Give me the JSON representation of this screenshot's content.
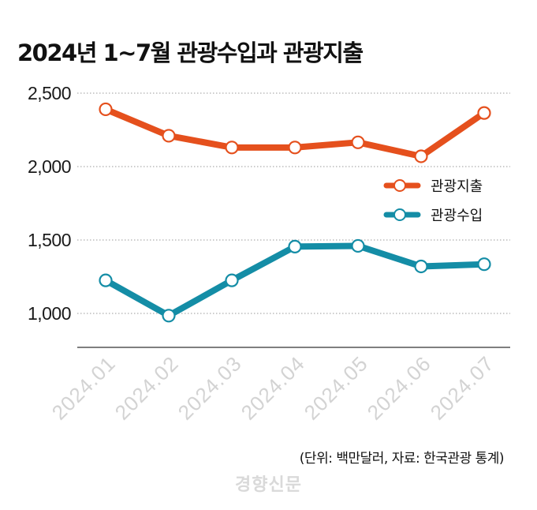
{
  "title": "2024년 1~7월 관광수입과 관광지출",
  "source": "(단위: 백만달러, 자료: 한국관광 통계)",
  "watermark": "경향신문",
  "chart_data": {
    "type": "line",
    "title": "2024년 1~7월 관광수입과 관광지출",
    "xlabel": "",
    "ylabel": "",
    "categories": [
      "2024.01",
      "2024.02",
      "2024.03",
      "2024.04",
      "2024.05",
      "2024.06",
      "2024.07"
    ],
    "ylim": [
      800,
      2600
    ],
    "yticks": [
      1000,
      1500,
      2000,
      2500
    ],
    "ytick_labels": [
      "1,000",
      "1,500",
      "2,000",
      "2,500"
    ],
    "grid": true,
    "legend_position": "right",
    "series": [
      {
        "name": "관광지출",
        "color": "#e5501d",
        "values": [
          2390,
          2210,
          2130,
          2130,
          2165,
          2070,
          2365
        ]
      },
      {
        "name": "관광수입",
        "color": "#148da6",
        "values": [
          1225,
          985,
          1225,
          1455,
          1460,
          1320,
          1335
        ]
      }
    ]
  }
}
